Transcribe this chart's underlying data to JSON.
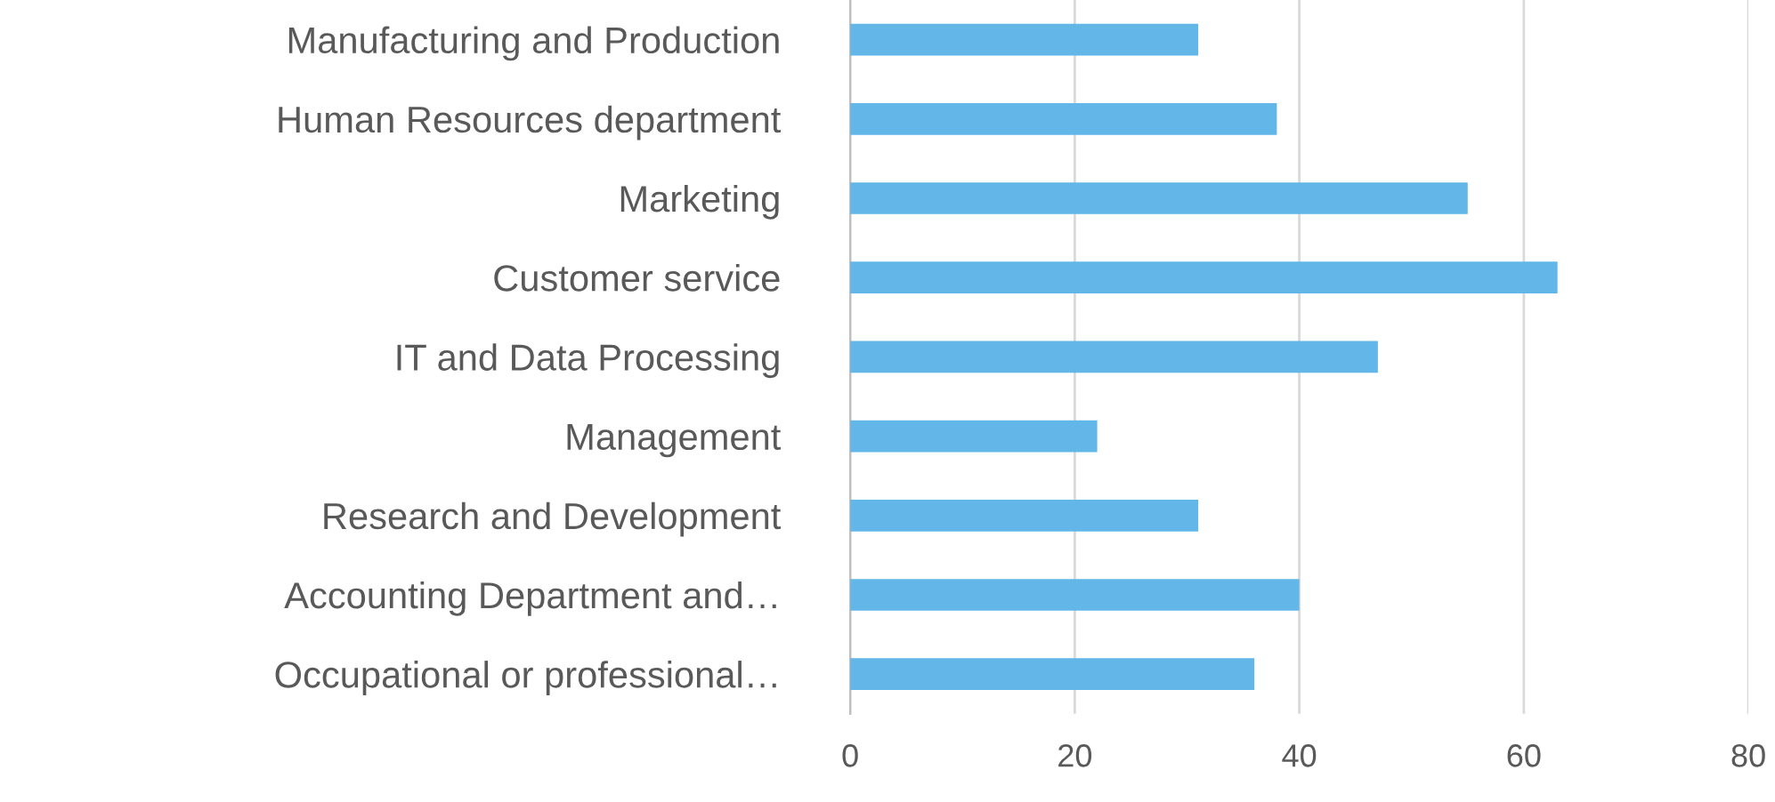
{
  "chart_data": {
    "type": "bar",
    "orientation": "horizontal",
    "categories": [
      "Manufacturing and Production",
      "Human Resources department",
      "Marketing",
      "Customer service",
      "IT and Data Processing",
      "Management",
      "Research and Development",
      "Accounting Department and…",
      "Occupational or professional…"
    ],
    "values": [
      31,
      38,
      55,
      63,
      47,
      22,
      31,
      40,
      36
    ],
    "color": "#62b6e8",
    "xlim": [
      0,
      80
    ],
    "xticks": [
      0,
      20,
      40,
      60,
      80
    ],
    "grid": "x",
    "legend": false
  }
}
